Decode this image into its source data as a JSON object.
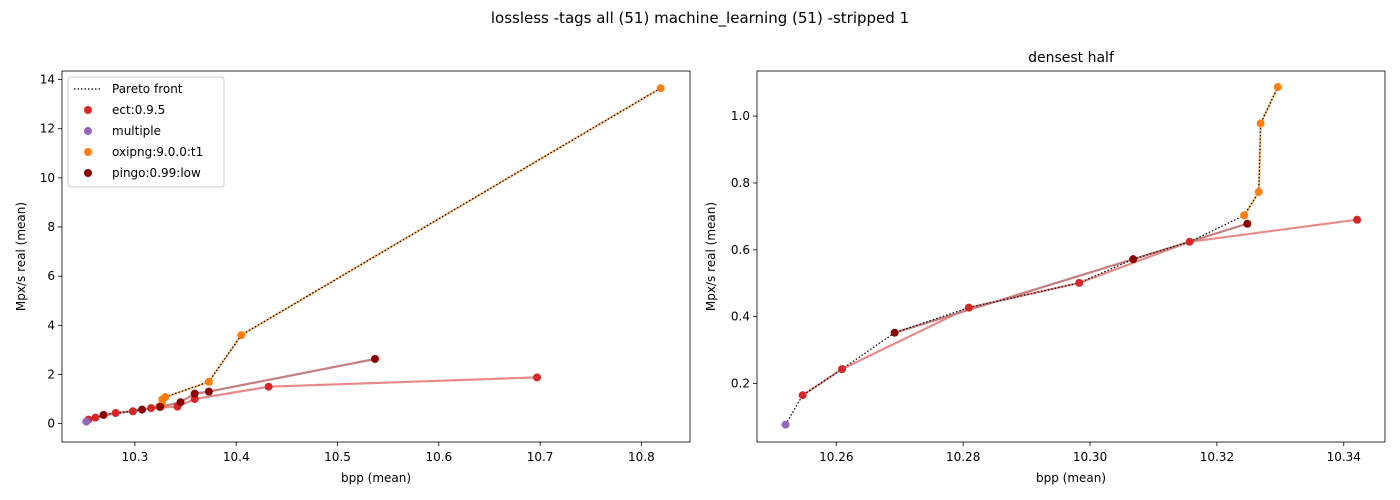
{
  "figure": {
    "suptitle": "lossless -tags all (51) machine_learning (51) -stripped 1"
  },
  "legend": {
    "placement": "upper-left",
    "entries": [
      {
        "label": "Pareto front",
        "kind": "line",
        "color": "#000000"
      },
      {
        "label": "ect:0.9.5",
        "kind": "marker",
        "color": "#d62728"
      },
      {
        "label": "multiple",
        "kind": "marker",
        "color": "#9467bd"
      },
      {
        "label": "oxipng:9.0.0:t1",
        "kind": "marker",
        "color": "#ff7f0e"
      },
      {
        "label": "pingo:0.99:low",
        "kind": "marker",
        "color": "#8b0000"
      }
    ]
  },
  "chart_data": [
    {
      "type": "scatter",
      "title": "",
      "xlabel": "bpp (mean)",
      "ylabel": "Mpx/s real (mean)",
      "xlim": [
        10.228,
        10.848
      ],
      "ylim": [
        -0.75,
        14.35
      ],
      "xticks": [
        "10.3",
        "10.4",
        "10.5",
        "10.6",
        "10.7",
        "10.8"
      ],
      "yticks": [
        "0",
        "2",
        "4",
        "6",
        "8",
        "10",
        "12",
        "14"
      ],
      "grid": false,
      "series": [
        {
          "name": "ect:0.9.5",
          "color": "#d62728",
          "line_color": "#e8898a",
          "x": [
            10.254,
            10.261,
            10.281,
            10.298,
            10.316,
            10.342,
            10.359,
            10.432,
            10.697
          ],
          "y": [
            0.16,
            0.24,
            0.43,
            0.5,
            0.63,
            0.69,
            1.0,
            1.5,
            1.88
          ]
        },
        {
          "name": "multiple",
          "color": "#9467bd",
          "line_color": "",
          "x": [
            10.252
          ],
          "y": [
            0.08
          ]
        },
        {
          "name": "oxipng:9.0.0:t1",
          "color": "#ff7f0e",
          "line_color": "#ffbf7f",
          "x": [
            10.324,
            10.327,
            10.327,
            10.33,
            10.373,
            10.405,
            10.819
          ],
          "y": [
            0.7,
            0.78,
            0.98,
            1.08,
            1.7,
            3.6,
            13.65
          ]
        },
        {
          "name": "pingo:0.99:low",
          "color": "#8b0000",
          "line_color": "#c48080",
          "x": [
            10.269,
            10.307,
            10.325,
            10.345,
            10.359,
            10.373,
            10.537
          ],
          "y": [
            0.35,
            0.57,
            0.68,
            0.87,
            1.22,
            1.3,
            2.63
          ]
        }
      ],
      "pareto": {
        "x": [
          10.252,
          10.254,
          10.261,
          10.269,
          10.281,
          10.298,
          10.307,
          10.316,
          10.324,
          10.327,
          10.327,
          10.33,
          10.373,
          10.405,
          10.819
        ],
        "y": [
          0.08,
          0.16,
          0.24,
          0.35,
          0.43,
          0.5,
          0.57,
          0.63,
          0.7,
          0.78,
          0.98,
          1.08,
          1.7,
          3.6,
          13.65
        ]
      }
    },
    {
      "type": "scatter",
      "title": "densest half",
      "xlabel": "bpp (mean)",
      "ylabel": "Mpx/s real (mean)",
      "xlim": [
        10.2475,
        10.3465
      ],
      "ylim": [
        0.025,
        1.135
      ],
      "xticks": [
        "10.26",
        "10.28",
        "10.30",
        "10.32",
        "10.34"
      ],
      "yticks": [
        "0.2",
        "0.4",
        "0.6",
        "0.8",
        "1.0"
      ],
      "grid": false,
      "series": [
        {
          "name": "ect:0.9.5",
          "color": "#d62728",
          "line_color": "#e8898a",
          "x": [
            10.2547,
            10.2609,
            10.2809,
            10.2983,
            10.3157,
            10.3421
          ],
          "y": [
            0.165,
            0.243,
            0.427,
            0.501,
            0.624,
            0.69
          ]
        },
        {
          "name": "multiple",
          "color": "#9467bd",
          "line_color": "",
          "x": [
            10.252
          ],
          "y": [
            0.077
          ]
        },
        {
          "name": "oxipng:9.0.0:t1",
          "color": "#ff7f0e",
          "line_color": "#ffbf7f",
          "x": [
            10.3243,
            10.3266,
            10.3269,
            10.3296
          ],
          "y": [
            0.703,
            0.773,
            0.978,
            1.087
          ]
        },
        {
          "name": "pingo:0.99:low",
          "color": "#8b0000",
          "line_color": "#c48080",
          "x": [
            10.2692,
            10.3068,
            10.3248
          ],
          "y": [
            0.352,
            0.572,
            0.678
          ]
        }
      ],
      "pareto": {
        "x": [
          10.252,
          10.2547,
          10.2609,
          10.2692,
          10.2809,
          10.2983,
          10.3068,
          10.3157,
          10.3243,
          10.3266,
          10.3269,
          10.3296
        ],
        "y": [
          0.077,
          0.165,
          0.243,
          0.352,
          0.427,
          0.501,
          0.572,
          0.624,
          0.703,
          0.773,
          0.978,
          1.087
        ]
      }
    }
  ]
}
